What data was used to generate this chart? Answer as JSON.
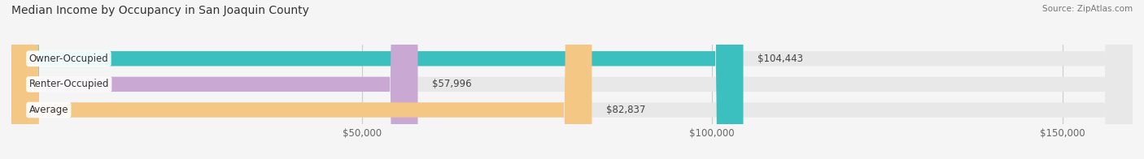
{
  "title": "Median Income by Occupancy in San Joaquin County",
  "source": "Source: ZipAtlas.com",
  "categories": [
    "Owner-Occupied",
    "Renter-Occupied",
    "Average"
  ],
  "values": [
    104443,
    57996,
    82837
  ],
  "labels": [
    "$104,443",
    "$57,996",
    "$82,837"
  ],
  "bar_colors": [
    "#3bbfbf",
    "#c9a8d4",
    "#f5c785"
  ],
  "bar_bg_color": "#e8e8e8",
  "xlim": [
    0,
    160000
  ],
  "xticks": [
    50000,
    100000,
    150000
  ],
  "xticklabels": [
    "$50,000",
    "$100,000",
    "$150,000"
  ],
  "title_fontsize": 10,
  "source_fontsize": 7.5,
  "label_fontsize": 8.5,
  "tick_fontsize": 8.5,
  "background_color": "#f5f5f5",
  "bar_height": 0.58,
  "grid_color": "#cccccc"
}
